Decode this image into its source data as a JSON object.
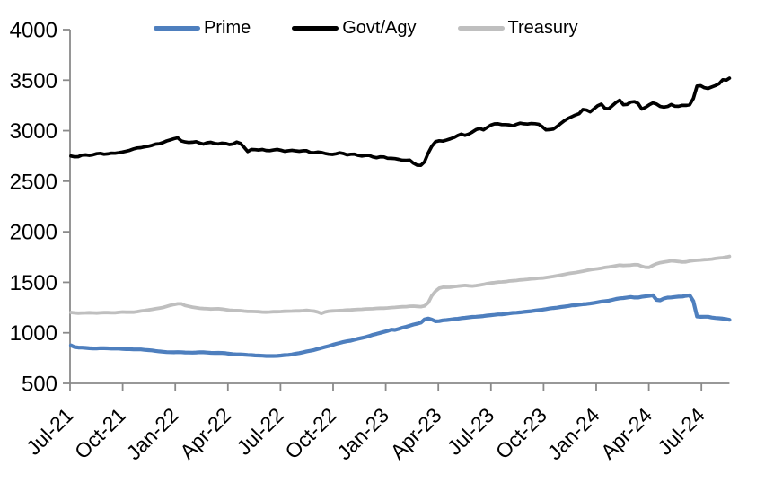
{
  "chart_data": {
    "type": "line",
    "title": "",
    "legend": {
      "position": "top",
      "entries": [
        "Prime",
        "Govt/Agy",
        "Treasury"
      ]
    },
    "x_axis": {
      "tick_labels": [
        "Jul-21",
        "Oct-21",
        "Jan-22",
        "Apr-22",
        "Jul-22",
        "Oct-22",
        "Jan-23",
        "Apr-23",
        "Jul-23",
        "Oct-23",
        "Jan-24",
        "Apr-24",
        "Jul-24"
      ],
      "months_between_ticks": 3,
      "label_rotation_deg": -45,
      "x_unit": "months since Jul-2021",
      "x_domain": [
        0,
        37.6
      ]
    },
    "y_axis": {
      "min": 500,
      "max": 4000,
      "step": 500,
      "tick_labels": [
        "500",
        "1000",
        "1500",
        "2000",
        "2500",
        "3000",
        "3500",
        "4000"
      ]
    },
    "grid": false,
    "series": [
      {
        "name": "Prime",
        "color": "#4e7fbe",
        "points": [
          [
            0,
            882
          ],
          [
            0.2,
            862
          ],
          [
            0.5,
            851
          ],
          [
            1,
            851
          ],
          [
            1.5,
            846
          ],
          [
            2,
            849
          ],
          [
            2.5,
            843
          ],
          [
            3,
            841
          ],
          [
            3.5,
            838
          ],
          [
            4,
            834
          ],
          [
            4.5,
            826
          ],
          [
            5,
            818
          ],
          [
            5.5,
            810
          ],
          [
            6,
            805
          ],
          [
            6.5,
            808
          ],
          [
            7,
            804
          ],
          [
            7.5,
            807
          ],
          [
            8,
            804
          ],
          [
            8.5,
            800
          ],
          [
            9,
            795
          ],
          [
            9.5,
            789
          ],
          [
            10,
            784
          ],
          [
            10.5,
            778
          ],
          [
            11,
            773
          ],
          [
            11.5,
            770
          ],
          [
            12,
            774
          ],
          [
            12.5,
            784
          ],
          [
            13,
            798
          ],
          [
            13.5,
            814
          ],
          [
            14,
            833
          ],
          [
            14.5,
            856
          ],
          [
            15,
            882
          ],
          [
            15.5,
            903
          ],
          [
            16,
            923
          ],
          [
            16.5,
            945
          ],
          [
            17,
            966
          ],
          [
            17.5,
            989
          ],
          [
            18,
            1013
          ],
          [
            18.3,
            1033
          ],
          [
            18.6,
            1028
          ],
          [
            19,
            1052
          ],
          [
            19.5,
            1076
          ],
          [
            20,
            1100
          ],
          [
            20.3,
            1145
          ],
          [
            20.6,
            1132
          ],
          [
            20.9,
            1108
          ],
          [
            21.2,
            1120
          ],
          [
            21.5,
            1128
          ],
          [
            22,
            1136
          ],
          [
            22.5,
            1148
          ],
          [
            23,
            1158
          ],
          [
            23.5,
            1166
          ],
          [
            24,
            1174
          ],
          [
            24.5,
            1183
          ],
          [
            25,
            1191
          ],
          [
            25.5,
            1200
          ],
          [
            26,
            1209
          ],
          [
            26.5,
            1219
          ],
          [
            27,
            1231
          ],
          [
            27.5,
            1243
          ],
          [
            28,
            1256
          ],
          [
            28.5,
            1268
          ],
          [
            29,
            1278
          ],
          [
            29.5,
            1288
          ],
          [
            30,
            1298
          ],
          [
            30.5,
            1313
          ],
          [
            31,
            1331
          ],
          [
            31.5,
            1345
          ],
          [
            32,
            1355
          ],
          [
            32.3,
            1348
          ],
          [
            32.7,
            1358
          ],
          [
            33,
            1363
          ],
          [
            33.3,
            1374
          ],
          [
            33.5,
            1309
          ],
          [
            33.8,
            1333
          ],
          [
            34,
            1347
          ],
          [
            34.5,
            1357
          ],
          [
            35,
            1363
          ],
          [
            35.3,
            1371
          ],
          [
            35.5,
            1367
          ],
          [
            35.65,
            1163
          ],
          [
            36,
            1157
          ],
          [
            36.4,
            1159
          ],
          [
            36.8,
            1147
          ],
          [
            37.2,
            1139
          ],
          [
            37.6,
            1129
          ]
        ]
      },
      {
        "name": "Govt/Agy",
        "color": "#000000",
        "points": [
          [
            0,
            2752
          ],
          [
            0.4,
            2742
          ],
          [
            0.8,
            2763
          ],
          [
            1.2,
            2753
          ],
          [
            1.6,
            2772
          ],
          [
            2,
            2766
          ],
          [
            2.5,
            2780
          ],
          [
            3,
            2797
          ],
          [
            3.5,
            2812
          ],
          [
            4,
            2832
          ],
          [
            4.5,
            2849
          ],
          [
            5,
            2867
          ],
          [
            5.5,
            2891
          ],
          [
            5.9,
            2919
          ],
          [
            6.1,
            2935
          ],
          [
            6.4,
            2897
          ],
          [
            6.8,
            2880
          ],
          [
            7.2,
            2891
          ],
          [
            7.6,
            2868
          ],
          [
            8,
            2883
          ],
          [
            8.4,
            2862
          ],
          [
            8.8,
            2881
          ],
          [
            9.2,
            2858
          ],
          [
            9.5,
            2885
          ],
          [
            9.8,
            2873
          ],
          [
            10.1,
            2791
          ],
          [
            10.4,
            2819
          ],
          [
            10.7,
            2799
          ],
          [
            11,
            2813
          ],
          [
            11.4,
            2801
          ],
          [
            11.8,
            2811
          ],
          [
            12.2,
            2799
          ],
          [
            12.6,
            2807
          ],
          [
            13,
            2793
          ],
          [
            13.4,
            2803
          ],
          [
            13.8,
            2781
          ],
          [
            14.2,
            2791
          ],
          [
            14.6,
            2773
          ],
          [
            15,
            2769
          ],
          [
            15.4,
            2779
          ],
          [
            15.8,
            2757
          ],
          [
            16.2,
            2773
          ],
          [
            16.6,
            2743
          ],
          [
            17,
            2759
          ],
          [
            17.4,
            2727
          ],
          [
            17.8,
            2747
          ],
          [
            18.2,
            2717
          ],
          [
            18.6,
            2725
          ],
          [
            19,
            2703
          ],
          [
            19.4,
            2713
          ],
          [
            19.7,
            2661
          ],
          [
            20,
            2653
          ],
          [
            20.2,
            2683
          ],
          [
            20.5,
            2812
          ],
          [
            20.8,
            2892
          ],
          [
            21,
            2906
          ],
          [
            21.3,
            2893
          ],
          [
            21.6,
            2921
          ],
          [
            22,
            2941
          ],
          [
            22.3,
            2966
          ],
          [
            22.6,
            2951
          ],
          [
            23,
            2991
          ],
          [
            23.3,
            3026
          ],
          [
            23.6,
            3006
          ],
          [
            24,
            3051
          ],
          [
            24.3,
            3076
          ],
          [
            24.6,
            3056
          ],
          [
            25,
            3066
          ],
          [
            25.3,
            3046
          ],
          [
            25.6,
            3071
          ],
          [
            26,
            3061
          ],
          [
            26.4,
            3071
          ],
          [
            26.8,
            3063
          ],
          [
            27.1,
            3003
          ],
          [
            27.5,
            3011
          ],
          [
            27.9,
            3059
          ],
          [
            28.3,
            3109
          ],
          [
            28.7,
            3146
          ],
          [
            29,
            3161
          ],
          [
            29.3,
            3221
          ],
          [
            29.6,
            3176
          ],
          [
            30,
            3241
          ],
          [
            30.3,
            3269
          ],
          [
            30.6,
            3203
          ],
          [
            31,
            3253
          ],
          [
            31.3,
            3309
          ],
          [
            31.6,
            3239
          ],
          [
            32,
            3283
          ],
          [
            32.3,
            3289
          ],
          [
            32.6,
            3213
          ],
          [
            33,
            3259
          ],
          [
            33.3,
            3279
          ],
          [
            33.6,
            3233
          ],
          [
            34,
            3233
          ],
          [
            34.3,
            3259
          ],
          [
            34.6,
            3236
          ],
          [
            35,
            3249
          ],
          [
            35.3,
            3256
          ],
          [
            35.5,
            3271
          ],
          [
            35.65,
            3433
          ],
          [
            36,
            3447
          ],
          [
            36.3,
            3419
          ],
          [
            36.7,
            3439
          ],
          [
            37,
            3459
          ],
          [
            37.2,
            3499
          ],
          [
            37.4,
            3489
          ],
          [
            37.6,
            3519
          ]
        ]
      },
      {
        "name": "Treasury",
        "color": "#bfbfbf",
        "points": [
          [
            0,
            1202
          ],
          [
            0.5,
            1194
          ],
          [
            1,
            1200
          ],
          [
            1.5,
            1193
          ],
          [
            2,
            1199
          ],
          [
            2.5,
            1197
          ],
          [
            3,
            1205
          ],
          [
            3.5,
            1202
          ],
          [
            4,
            1213
          ],
          [
            4.5,
            1226
          ],
          [
            5,
            1241
          ],
          [
            5.5,
            1261
          ],
          [
            6,
            1283
          ],
          [
            6.3,
            1291
          ],
          [
            6.6,
            1269
          ],
          [
            7,
            1251
          ],
          [
            7.5,
            1241
          ],
          [
            8,
            1234
          ],
          [
            8.5,
            1239
          ],
          [
            9,
            1227
          ],
          [
            9.5,
            1221
          ],
          [
            10,
            1214
          ],
          [
            10.5,
            1211
          ],
          [
            11,
            1204
          ],
          [
            11.5,
            1207
          ],
          [
            12,
            1211
          ],
          [
            12.5,
            1214
          ],
          [
            13,
            1217
          ],
          [
            13.5,
            1221
          ],
          [
            14,
            1214
          ],
          [
            14.3,
            1189
          ],
          [
            14.6,
            1211
          ],
          [
            15,
            1217
          ],
          [
            15.5,
            1221
          ],
          [
            16,
            1227
          ],
          [
            16.5,
            1231
          ],
          [
            17,
            1237
          ],
          [
            17.5,
            1241
          ],
          [
            18,
            1244
          ],
          [
            18.5,
            1251
          ],
          [
            19,
            1257
          ],
          [
            19.5,
            1264
          ],
          [
            20,
            1258
          ],
          [
            20.2,
            1266
          ],
          [
            20.4,
            1292
          ],
          [
            20.7,
            1392
          ],
          [
            21,
            1440
          ],
          [
            21.3,
            1453
          ],
          [
            21.6,
            1449
          ],
          [
            22,
            1459
          ],
          [
            22.5,
            1469
          ],
          [
            23,
            1463
          ],
          [
            23.5,
            1476
          ],
          [
            24,
            1493
          ],
          [
            24.5,
            1503
          ],
          [
            25,
            1511
          ],
          [
            25.5,
            1519
          ],
          [
            26,
            1529
          ],
          [
            26.5,
            1537
          ],
          [
            27,
            1544
          ],
          [
            27.5,
            1557
          ],
          [
            28,
            1571
          ],
          [
            28.5,
            1587
          ],
          [
            29,
            1601
          ],
          [
            29.5,
            1617
          ],
          [
            30,
            1631
          ],
          [
            30.5,
            1647
          ],
          [
            31,
            1661
          ],
          [
            31.3,
            1671
          ],
          [
            31.6,
            1664
          ],
          [
            32,
            1671
          ],
          [
            32.3,
            1679
          ],
          [
            32.7,
            1651
          ],
          [
            33,
            1645
          ],
          [
            33.3,
            1673
          ],
          [
            33.6,
            1691
          ],
          [
            34,
            1703
          ],
          [
            34.3,
            1713
          ],
          [
            34.6,
            1707
          ],
          [
            35,
            1699
          ],
          [
            35.3,
            1711
          ],
          [
            35.6,
            1717
          ],
          [
            36,
            1721
          ],
          [
            36.5,
            1730
          ],
          [
            37,
            1739
          ],
          [
            37.3,
            1747
          ],
          [
            37.6,
            1756
          ]
        ]
      }
    ]
  },
  "colors": {
    "axis": "#8a8a8a",
    "tick_text": "#000000",
    "background": "#ffffff"
  }
}
